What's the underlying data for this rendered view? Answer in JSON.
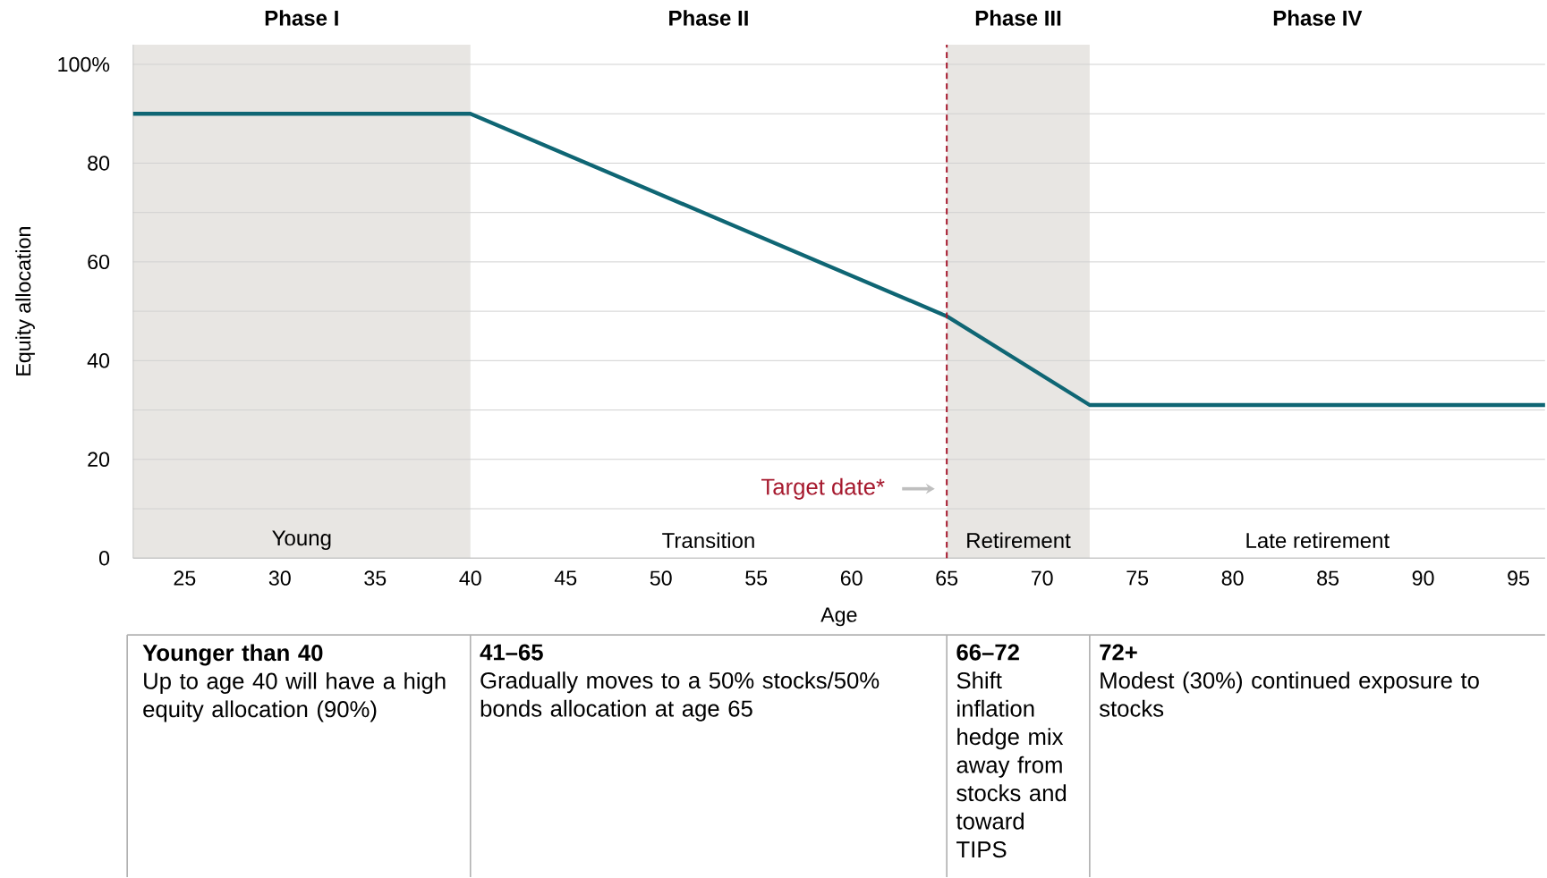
{
  "chart_data": {
    "type": "line",
    "xlabel": "Age",
    "ylabel": "Equity allocation",
    "x": [
      22.3,
      40,
      65,
      72.5,
      96.4
    ],
    "series": [
      {
        "color": "#0f6674",
        "values": [
          90,
          90,
          49,
          31,
          31
        ]
      }
    ],
    "xlim": [
      22.3,
      96.4
    ],
    "ylim": [
      0,
      104
    ],
    "xticks": [
      25,
      30,
      35,
      40,
      45,
      50,
      55,
      60,
      65,
      70,
      75,
      80,
      85,
      90,
      95
    ],
    "yticks": [
      0,
      {
        "value": 10,
        "label": null
      },
      20,
      {
        "value": 30,
        "label": null
      },
      40,
      {
        "value": 50,
        "label": null
      },
      60,
      {
        "value": 70,
        "label": null
      },
      80,
      {
        "value": 90,
        "label": null
      },
      {
        "value": 100,
        "label": "100%"
      }
    ],
    "grid": "y",
    "bands": [
      {
        "axis": "x",
        "from": 22.3,
        "to": 40,
        "label": "Young",
        "color": "#e8e6e3"
      },
      {
        "axis": "x",
        "from": 65,
        "to": 72.5,
        "label": "Retirement",
        "color": "#e8e6e3"
      }
    ],
    "ref_lines": [
      {
        "axis": "x",
        "value": 65,
        "label": "Target date*",
        "color": "#a6192e",
        "line_style": "dashed"
      }
    ],
    "annotations": [
      "Phase I",
      "Phase II",
      "Phase III",
      "Phase IV",
      "Transition",
      "Late retirement",
      "Younger than 40",
      "41–65",
      "66–72",
      "72+",
      "Up to age 40 will have a high equity allocation (90%)",
      "Gradually moves to a 50% stocks/50% bonds allocation at age 65",
      "Shift inflation hedge mix away from stocks and toward TIPS",
      "Modest (30%) continued exposure to stocks"
    ]
  }
}
